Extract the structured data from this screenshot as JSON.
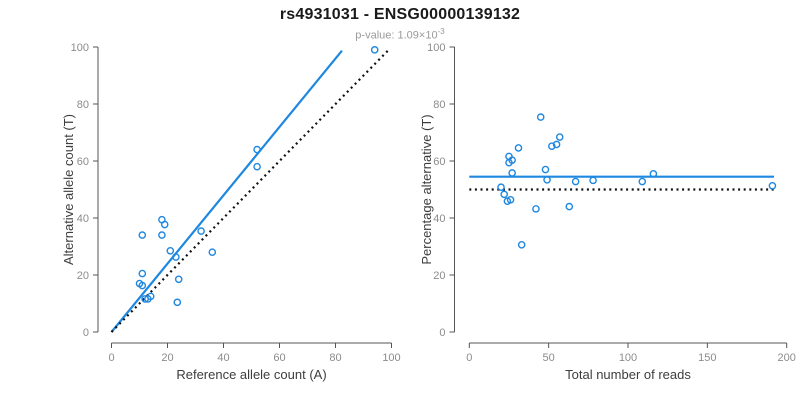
{
  "header": {
    "title": "rs4931031 - ENSG00000139132",
    "pvalue_label": "p-value: 1.09×10",
    "pvalue_exponent": "-3"
  },
  "colors": {
    "accent_blue": "#1e87e0",
    "dotted_black": "#111111",
    "axis_line": "#555555",
    "tick_label_gray": "#8c8c8c",
    "axis_title_gray": "#3d3d3d",
    "title_black": "#1a1a1a",
    "subtitle_gray": "#9a9a9a"
  },
  "chart_data": [
    {
      "type": "scatter",
      "name": "allele-count-scatter",
      "xlabel": "Reference allele count (A)",
      "ylabel": "Alternative allele count (T)",
      "xlim": [
        0,
        100
      ],
      "ylim": [
        0,
        100
      ],
      "xticks": [
        0,
        20,
        40,
        60,
        80,
        100
      ],
      "yticks": [
        0,
        20,
        40,
        60,
        80,
        100
      ],
      "grid": false,
      "legend": null,
      "marker": "open-circle",
      "points": [
        [
          94,
          99
        ],
        [
          52,
          64
        ],
        [
          52,
          58
        ],
        [
          36,
          28
        ],
        [
          32,
          35.4
        ],
        [
          21,
          28.5
        ],
        [
          23,
          26.3
        ],
        [
          18,
          39.4
        ],
        [
          19,
          37.7
        ],
        [
          18,
          34
        ],
        [
          11,
          34
        ],
        [
          24,
          18.5
        ],
        [
          23.5,
          10.4
        ],
        [
          11,
          20.5
        ],
        [
          10,
          17
        ],
        [
          11,
          16.3
        ],
        [
          12,
          11.6
        ],
        [
          13,
          11.6
        ],
        [
          14,
          12.5
        ]
      ],
      "lines": [
        {
          "name": "fit-line",
          "style": "solid",
          "color": "blue",
          "x1": 0,
          "y1": 0,
          "x2": 82.3,
          "y2": 98.7
        },
        {
          "name": "identity-line",
          "style": "dotted",
          "color": "black",
          "x1": 0,
          "y1": 0,
          "x2": 99,
          "y2": 99
        }
      ]
    },
    {
      "type": "scatter",
      "name": "reads-percentage-scatter",
      "xlabel": "Total number of reads",
      "ylabel": "Percentage alternative (T)",
      "xlim": [
        0,
        200
      ],
      "ylim": [
        0,
        100
      ],
      "xticks": [
        0,
        50,
        100,
        150,
        200
      ],
      "yticks": [
        0,
        20,
        40,
        60,
        80,
        100
      ],
      "grid": false,
      "legend": null,
      "marker": "open-circle",
      "points": [
        [
          45,
          75.4
        ],
        [
          57,
          68.4
        ],
        [
          55,
          65.8
        ],
        [
          52,
          65.2
        ],
        [
          31,
          64.6
        ],
        [
          25,
          61.6
        ],
        [
          27,
          60.3
        ],
        [
          25,
          59.4
        ],
        [
          27,
          55.8
        ],
        [
          48,
          57
        ],
        [
          49,
          53.4
        ],
        [
          67,
          52.8
        ],
        [
          78,
          53.2
        ],
        [
          20,
          50.8
        ],
        [
          22,
          48.3
        ],
        [
          24,
          45.9
        ],
        [
          26,
          46.4
        ],
        [
          42,
          43.2
        ],
        [
          63,
          44
        ],
        [
          33,
          30.6
        ],
        [
          116,
          55.5
        ],
        [
          109,
          52.8
        ],
        [
          191,
          51.3
        ]
      ],
      "lines": [
        {
          "name": "mean-line",
          "style": "solid",
          "color": "blue",
          "x1": 0,
          "y1": 54.5,
          "x2": 192,
          "y2": 54.5
        },
        {
          "name": "null-line",
          "style": "dotted",
          "color": "black",
          "x1": 0,
          "y1": 50,
          "x2": 194,
          "y2": 50
        }
      ]
    }
  ]
}
